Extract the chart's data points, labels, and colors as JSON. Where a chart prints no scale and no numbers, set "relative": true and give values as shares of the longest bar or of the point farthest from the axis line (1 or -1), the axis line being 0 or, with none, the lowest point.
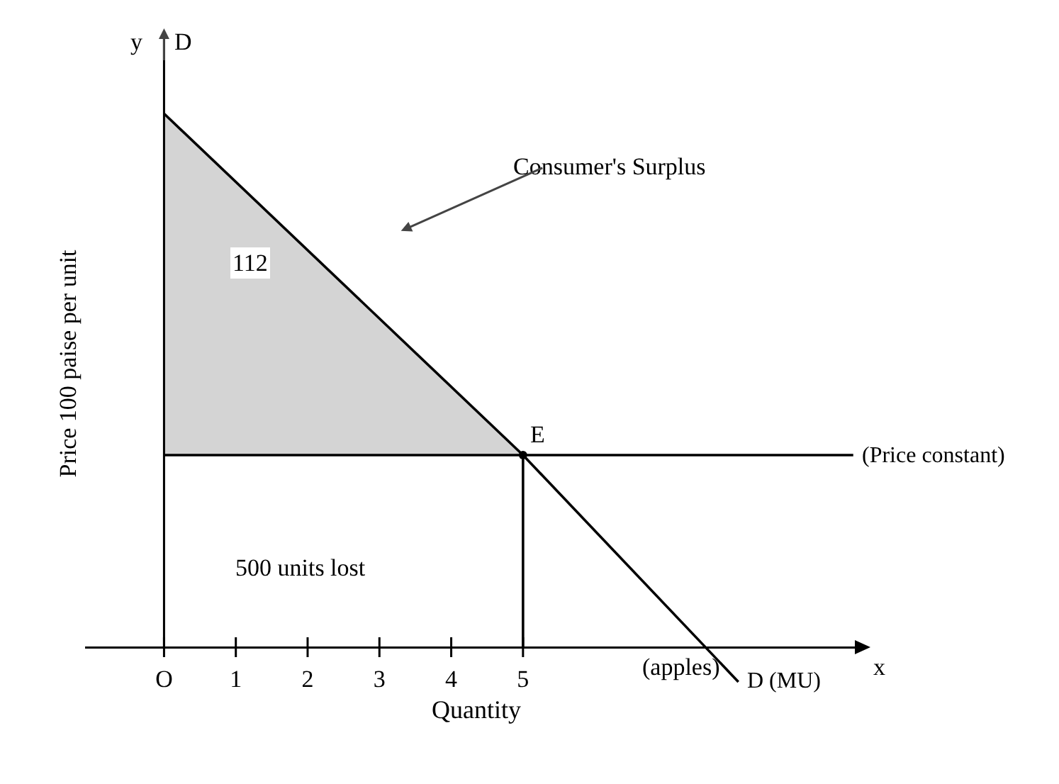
{
  "chart_data": {
    "type": "line",
    "relative": true,
    "xlabel": "Quantity",
    "ylabel": "Price 100 paise per unit",
    "xlim": [
      -1.1,
      9.8
    ],
    "xticks": [
      {
        "value": 0,
        "label": "O"
      },
      1,
      2,
      3,
      4,
      5
    ],
    "legend": false,
    "grid": false,
    "line_style": "solid",
    "series": [
      {
        "name": "D (MU)",
        "color": "#000000",
        "x": [
          0,
          5,
          8
        ],
        "values": [
          1,
          0.36,
          -0.065
        ],
        "lower": [
          0.36,
          0.36,
          null
        ],
        "upper": [
          1,
          0.36,
          null
        ]
      },
      {
        "name": "(Price constant)",
        "color": "#000000",
        "x": [
          0,
          9.6
        ],
        "values": [
          0.36,
          0.36
        ]
      },
      {
        "color": "#000000",
        "x": [
          5,
          5
        ],
        "values": [
          0,
          0.36
        ]
      }
    ],
    "annotations": [
      "y",
      "D",
      "Consumer's Surplus",
      "112",
      "500 units lost",
      "(apples)",
      "x",
      {
        "text": "E",
        "x": 5,
        "y": 0.36
      }
    ]
  }
}
